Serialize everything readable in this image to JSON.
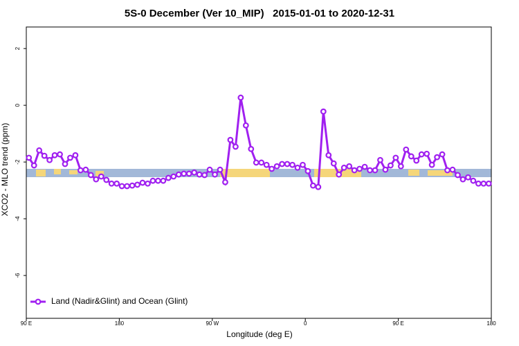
{
  "chart_data": {
    "type": "line",
    "title": "5S-0 December (Ver 10_MIP)   2015-01-01 to 2020-12-31",
    "x_label": "Longitude (deg E)",
    "y_label": "XCO2 - MLO trend (ppm)",
    "xlim": [
      90,
      540
    ],
    "xticks": [
      {
        "value": 90,
        "label": "90 E"
      },
      {
        "value": 180,
        "label": "180"
      },
      {
        "value": 270,
        "label": "90 W"
      },
      {
        "value": 360,
        "label": "0"
      },
      {
        "value": 450,
        "label": "90 E"
      },
      {
        "value": 540,
        "label": "180"
      }
    ],
    "ylim": [
      -7.51,
      2.76
    ],
    "yticks": [
      2,
      0,
      -2,
      -4,
      -6
    ],
    "legend": "bottom-left",
    "x": [
      92.5,
      97.5,
      102.5,
      107.5,
      112.5,
      117.5,
      122.5,
      127.5,
      132.5,
      137.5,
      142.5,
      147.5,
      152.5,
      157.5,
      162.5,
      167.5,
      172.5,
      177.5,
      182.5,
      187.5,
      192.5,
      197.5,
      202.5,
      207.5,
      212.5,
      217.5,
      222.5,
      227.5,
      232.5,
      237.5,
      242.5,
      247.5,
      252.5,
      257.5,
      262.5,
      267.5,
      272.5,
      277.5,
      282.5,
      287.5,
      292.5,
      297.5,
      302.5,
      307.5,
      312.5,
      317.5,
      322.5,
      327.5,
      332.5,
      337.5,
      342.5,
      347.5,
      352.5,
      357.5,
      362.5,
      367.5,
      372.5,
      377.5,
      382.5,
      387.5,
      392.5,
      397.5,
      402.5,
      407.5,
      412.5,
      417.5,
      422.5,
      427.5,
      432.5,
      437.5,
      442.5,
      447.5,
      452.5,
      457.5,
      462.5,
      467.5,
      472.5,
      477.5,
      482.5,
      487.5,
      492.5,
      497.5,
      502.5,
      507.5,
      512.5,
      517.5,
      522.5,
      527.5,
      532.5,
      537.5
    ],
    "series": [
      {
        "name": "Land (Nadir&Glint) and Ocean (Glint)",
        "color": "#a020f0",
        "values": [
          -1.85,
          -2.12,
          -1.59,
          -1.78,
          -1.93,
          -1.76,
          -1.73,
          -2.07,
          -1.85,
          -1.76,
          -2.29,
          -2.27,
          -2.46,
          -2.61,
          -2.51,
          -2.63,
          -2.76,
          -2.76,
          -2.85,
          -2.85,
          -2.83,
          -2.8,
          -2.73,
          -2.76,
          -2.66,
          -2.66,
          -2.66,
          -2.56,
          -2.51,
          -2.44,
          -2.41,
          -2.41,
          -2.37,
          -2.44,
          -2.46,
          -2.27,
          -2.44,
          -2.27,
          -2.71,
          -1.22,
          -1.46,
          0.27,
          -0.71,
          -1.54,
          -2.02,
          -2.02,
          -2.1,
          -2.24,
          -2.15,
          -2.07,
          -2.07,
          -2.1,
          -2.2,
          -2.1,
          -2.32,
          -2.83,
          -2.88,
          -0.22,
          -1.76,
          -2.05,
          -2.44,
          -2.2,
          -2.15,
          -2.29,
          -2.24,
          -2.17,
          -2.29,
          -2.29,
          -1.93,
          -2.27,
          -2.12,
          -1.85,
          -2.15,
          -1.56,
          -1.8,
          -1.95,
          -1.73,
          -1.71,
          -2.1,
          -1.83,
          -1.73,
          -2.29,
          -2.27,
          -2.46,
          -2.61,
          -2.54,
          -2.66,
          -2.76,
          -2.76,
          -2.76
        ]
      }
    ]
  }
}
